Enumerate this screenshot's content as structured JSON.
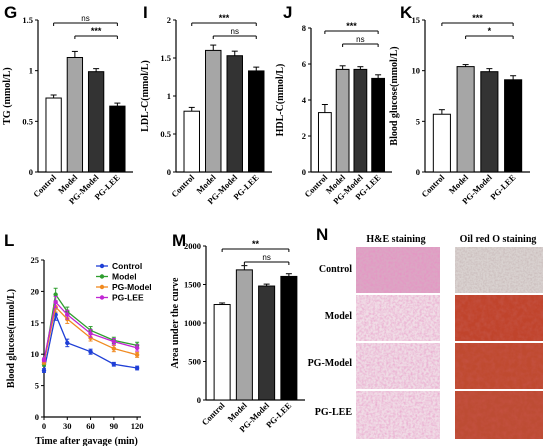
{
  "chart_data": [
    {
      "panel": "G",
      "type": "bar",
      "categories": [
        "Control",
        "Model",
        "PG-Model",
        "PG-LEE"
      ],
      "values": [
        0.73,
        1.13,
        0.99,
        0.65
      ],
      "errors": [
        0.03,
        0.06,
        0.03,
        0.03
      ],
      "ylabel": "TG (mmol/L)",
      "ylim": [
        0,
        1.5
      ],
      "yticks": [
        0,
        0.5,
        1.0,
        1.5
      ],
      "significance": [
        {
          "from": "Control",
          "to": "PG-LEE",
          "label": "ns"
        },
        {
          "from": "Model",
          "to": "PG-LEE",
          "label": "***"
        }
      ]
    },
    {
      "panel": "I",
      "type": "bar",
      "categories": [
        "Control",
        "Model",
        "PG-Model",
        "PG-LEE"
      ],
      "values": [
        0.8,
        1.6,
        1.53,
        1.33
      ],
      "errors": [
        0.05,
        0.07,
        0.06,
        0.05
      ],
      "ylabel": "LDL-C(mmol/L)",
      "ylim": [
        0,
        2.0
      ],
      "yticks": [
        0,
        0.5,
        1.0,
        1.5,
        2.0
      ],
      "significance": [
        {
          "from": "Control",
          "to": "PG-LEE",
          "label": "***"
        },
        {
          "from": "Model",
          "to": "PG-LEE",
          "label": "ns"
        }
      ]
    },
    {
      "panel": "J",
      "type": "bar",
      "categories": [
        "Control",
        "Model",
        "PG-Model",
        "PG-LEE"
      ],
      "values": [
        3.3,
        5.7,
        5.7,
        5.2
      ],
      "errors": [
        0.45,
        0.2,
        0.15,
        0.2
      ],
      "ylabel": "HDL-C(mmol/L)",
      "ylim": [
        0,
        8
      ],
      "yticks": [
        0,
        2,
        4,
        6,
        8
      ],
      "significance": [
        {
          "from": "Control",
          "to": "PG-LEE",
          "label": "***"
        },
        {
          "from": "Model",
          "to": "PG-LEE",
          "label": "ns"
        }
      ]
    },
    {
      "panel": "K",
      "type": "bar",
      "categories": [
        "Control",
        "Model",
        "PG-Model",
        "PG-LEE"
      ],
      "values": [
        5.7,
        10.4,
        9.9,
        9.1
      ],
      "errors": [
        0.45,
        0.2,
        0.3,
        0.4
      ],
      "ylabel": "Blood glucose(mmol/L)",
      "ylim": [
        0,
        15
      ],
      "yticks": [
        0,
        5,
        10,
        15
      ],
      "significance": [
        {
          "from": "Control",
          "to": "PG-LEE",
          "label": "***"
        },
        {
          "from": "Model",
          "to": "PG-LEE",
          "label": "*"
        }
      ]
    },
    {
      "panel": "L",
      "type": "line",
      "xlabel": "Time after gavage (min)",
      "ylabel": "Blood glucose(mmol/L)",
      "x": [
        0,
        15,
        30,
        60,
        90,
        120
      ],
      "xlim": [
        0,
        125
      ],
      "xticks": [
        0,
        30,
        60,
        90,
        120
      ],
      "ylim": [
        0,
        25
      ],
      "yticks": [
        0,
        5,
        10,
        15,
        20,
        25
      ],
      "series": [
        {
          "name": "Control",
          "color": "#1f3fd6",
          "values": [
            7.4,
            16.3,
            11.8,
            10.4,
            8.4,
            7.8
          ],
          "errors": [
            0.3,
            0.9,
            0.6,
            0.4,
            0.3,
            0.3
          ]
        },
        {
          "name": "Model",
          "color": "#2f9e2f",
          "values": [
            8.4,
            19.5,
            16.8,
            13.8,
            12.2,
            11.4
          ],
          "errors": [
            0.3,
            1.0,
            0.7,
            0.6,
            0.5,
            0.5
          ]
        },
        {
          "name": "PG-Model",
          "color": "#f08a20",
          "values": [
            8.7,
            17.5,
            15.6,
            12.6,
            10.9,
            9.9
          ],
          "errors": [
            0.3,
            0.8,
            0.7,
            0.5,
            0.5,
            0.4
          ]
        },
        {
          "name": "PG-LEE",
          "color": "#c026d3",
          "values": [
            9.1,
            18.3,
            16.3,
            13.3,
            12.0,
            11.0
          ],
          "errors": [
            0.3,
            0.9,
            0.7,
            0.6,
            0.5,
            0.5
          ]
        }
      ]
    },
    {
      "panel": "M",
      "type": "bar",
      "categories": [
        "Control",
        "Model",
        "PG-Model",
        "PG-LEE"
      ],
      "values": [
        1240,
        1690,
        1480,
        1605
      ],
      "errors": [
        20,
        55,
        25,
        35
      ],
      "ylabel": "Area under the curve",
      "ylim": [
        0,
        2000
      ],
      "yticks": [
        0,
        500,
        1000,
        1500,
        2000
      ],
      "significance": [
        {
          "from": "Control",
          "to": "PG-LEE",
          "label": "**"
        },
        {
          "from": "Model",
          "to": "PG-LEE",
          "label": "ns"
        }
      ]
    }
  ],
  "bar_colors": [
    "#ffffff",
    "#a6a6a6",
    "#333333",
    "#000000"
  ],
  "histology": {
    "panel": "N",
    "columns": [
      "H&E staining",
      "Oil red O staining"
    ],
    "rows": [
      "Control",
      "Model",
      "PG-Model",
      "PG-LEE"
    ]
  }
}
